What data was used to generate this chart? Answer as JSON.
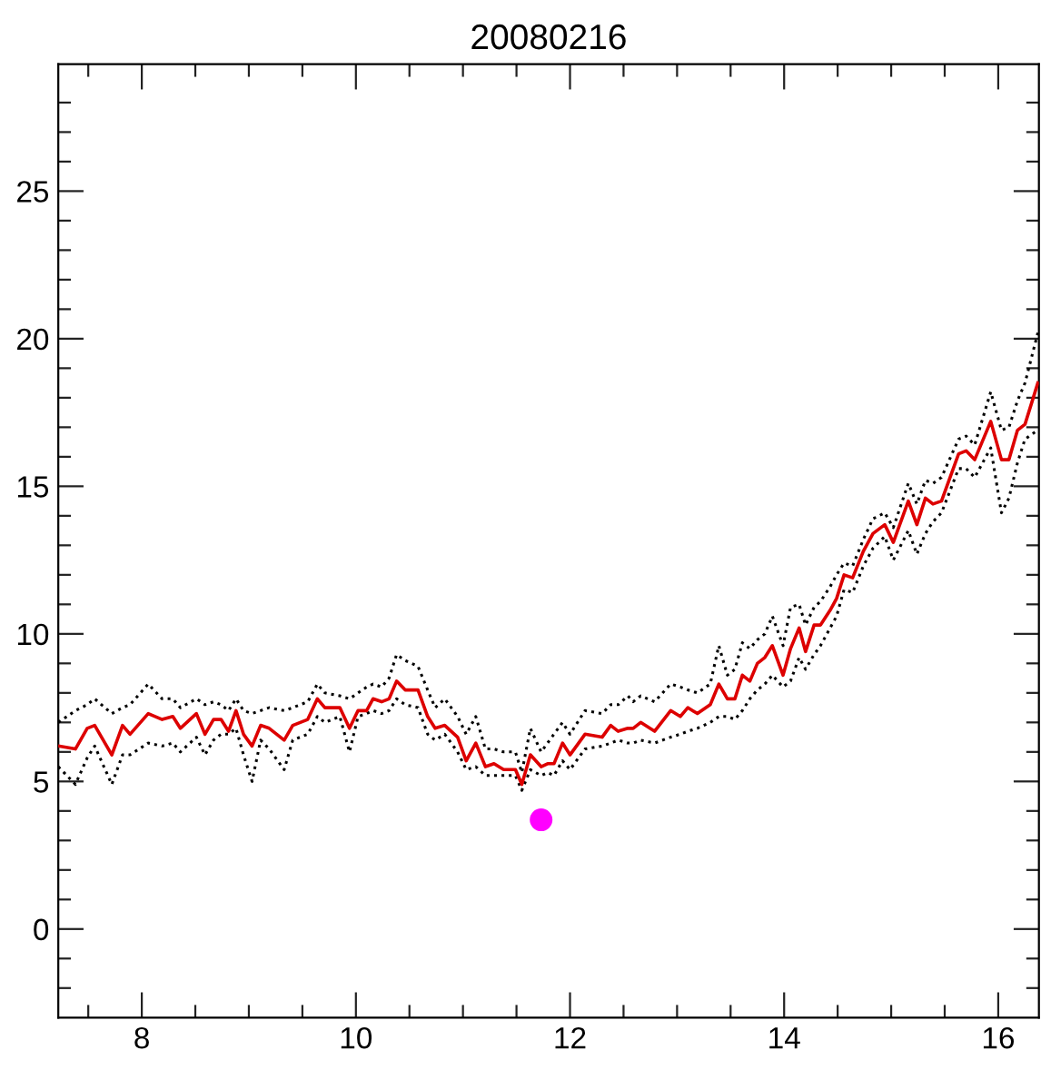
{
  "chart_data": {
    "type": "line",
    "title": "20080216",
    "x": [
      7.22,
      7.38,
      7.49,
      7.56,
      7.72,
      7.82,
      7.89,
      8.06,
      8.19,
      8.29,
      8.36,
      8.51,
      8.59,
      8.67,
      8.74,
      8.81,
      8.88,
      8.95,
      9.03,
      9.11,
      9.19,
      9.33,
      9.41,
      9.55,
      9.64,
      9.71,
      9.85,
      9.94,
      10.02,
      10.1,
      10.16,
      10.24,
      10.31,
      10.38,
      10.46,
      10.58,
      10.67,
      10.74,
      10.83,
      10.95,
      11.03,
      11.12,
      11.21,
      11.29,
      11.38,
      11.49,
      11.55,
      11.63,
      11.73,
      11.79,
      11.85,
      11.93,
      12.0,
      12.14,
      12.3,
      12.38,
      12.45,
      12.54,
      12.59,
      12.66,
      12.79,
      12.94,
      13.03,
      13.1,
      13.19,
      13.31,
      13.39,
      13.47,
      13.54,
      13.61,
      13.68,
      13.75,
      13.82,
      13.89,
      13.99,
      14.06,
      14.14,
      14.2,
      14.28,
      14.34,
      14.43,
      14.49,
      14.56,
      14.64,
      14.74,
      14.83,
      14.94,
      15.02,
      15.16,
      15.24,
      15.32,
      15.39,
      15.47,
      15.63,
      15.7,
      15.78,
      15.93,
      16.03,
      16.1,
      16.18,
      16.25,
      16.37
    ],
    "series": [
      {
        "color": "#000000",
        "line_style": "dotted",
        "values": [
          7.0,
          7.4,
          7.6,
          7.8,
          7.3,
          7.5,
          7.6,
          8.3,
          7.8,
          7.8,
          7.5,
          7.8,
          7.6,
          7.7,
          7.6,
          7.4,
          7.8,
          7.4,
          7.3,
          7.4,
          7.5,
          7.4,
          7.5,
          7.7,
          8.3,
          8.0,
          7.9,
          7.8,
          8.0,
          8.2,
          8.3,
          8.2,
          8.5,
          9.3,
          9.1,
          8.9,
          8.1,
          7.5,
          7.8,
          7.2,
          6.6,
          7.2,
          6.1,
          6.1,
          6.0,
          6.0,
          5.3,
          6.8,
          6.0,
          6.3,
          6.6,
          7.0,
          6.6,
          7.4,
          7.3,
          7.6,
          7.6,
          7.9,
          7.7,
          7.9,
          7.7,
          8.3,
          8.2,
          8.1,
          8.0,
          8.3,
          9.6,
          8.6,
          8.8,
          9.7,
          9.5,
          9.8,
          10.0,
          10.6,
          9.6,
          10.9,
          11.0,
          10.3,
          10.9,
          11.1,
          11.6,
          12.0,
          12.4,
          12.3,
          13.2,
          13.9,
          14.1,
          13.6,
          15.1,
          14.4,
          15.2,
          15.1,
          15.3,
          16.6,
          16.7,
          16.4,
          18.2,
          16.9,
          17.0,
          17.9,
          18.5,
          20.2
        ]
      },
      {
        "color": "#000000",
        "line_style": "dotted",
        "values": [
          5.5,
          4.9,
          5.8,
          6.2,
          4.9,
          5.9,
          5.9,
          6.3,
          6.2,
          6.3,
          6.0,
          6.5,
          5.9,
          6.4,
          6.6,
          6.6,
          6.8,
          5.9,
          5.0,
          6.4,
          6.1,
          5.4,
          6.4,
          6.6,
          7.2,
          7.0,
          7.2,
          6.0,
          7.2,
          7.3,
          7.4,
          7.3,
          7.4,
          7.8,
          7.6,
          7.5,
          6.6,
          6.4,
          6.6,
          6.0,
          5.4,
          5.5,
          5.2,
          5.2,
          5.2,
          5.2,
          4.7,
          5.4,
          5.2,
          5.3,
          5.2,
          5.7,
          5.4,
          6.1,
          6.2,
          6.3,
          6.4,
          6.3,
          6.3,
          6.4,
          6.3,
          6.5,
          6.6,
          6.7,
          6.8,
          7.0,
          7.2,
          7.2,
          7.1,
          7.4,
          7.8,
          8.1,
          8.3,
          8.6,
          8.2,
          8.4,
          9.2,
          8.8,
          9.3,
          9.6,
          10.2,
          10.6,
          11.5,
          11.4,
          12.3,
          12.9,
          13.3,
          12.5,
          13.5,
          12.7,
          13.4,
          13.8,
          14.1,
          15.6,
          15.6,
          15.3,
          16.3,
          14.1,
          14.6,
          15.8,
          16.6,
          16.9
        ]
      },
      {
        "color": "#dd0000",
        "line_style": "solid",
        "values": [
          6.2,
          6.1,
          6.8,
          6.9,
          5.9,
          6.9,
          6.6,
          7.3,
          7.1,
          7.2,
          6.8,
          7.3,
          6.6,
          7.1,
          7.1,
          6.7,
          7.4,
          6.6,
          6.2,
          6.9,
          6.8,
          6.4,
          6.9,
          7.1,
          7.8,
          7.5,
          7.5,
          6.8,
          7.4,
          7.4,
          7.8,
          7.7,
          7.8,
          8.4,
          8.1,
          8.1,
          7.2,
          6.8,
          6.9,
          6.5,
          5.7,
          6.3,
          5.5,
          5.6,
          5.4,
          5.4,
          4.9,
          5.9,
          5.5,
          5.6,
          5.6,
          6.3,
          5.9,
          6.6,
          6.5,
          6.9,
          6.7,
          6.8,
          6.8,
          7.0,
          6.7,
          7.4,
          7.2,
          7.5,
          7.3,
          7.6,
          8.3,
          7.8,
          7.8,
          8.6,
          8.4,
          9.0,
          9.2,
          9.6,
          8.6,
          9.5,
          10.2,
          9.4,
          10.3,
          10.3,
          10.8,
          11.2,
          12.0,
          11.9,
          12.8,
          13.4,
          13.7,
          13.1,
          14.5,
          13.7,
          14.6,
          14.4,
          14.5,
          16.1,
          16.2,
          15.9,
          17.2,
          15.9,
          15.9,
          16.9,
          17.1,
          18.5
        ]
      },
      {
        "type": "scatter",
        "color": "#ff00ff",
        "marker": "circle",
        "x": [
          11.73
        ],
        "values": [
          3.7
        ]
      }
    ],
    "xlim": [
      7.22,
      16.38
    ],
    "ylim": [
      -3,
      29.3
    ],
    "xticks": [
      {
        "value": 7.5,
        "label": null
      },
      8,
      {
        "value": 8.5,
        "label": null
      },
      {
        "value": 9,
        "label": null
      },
      {
        "value": 9.5,
        "label": null
      },
      10,
      {
        "value": 10.5,
        "label": null
      },
      {
        "value": 11,
        "label": null
      },
      {
        "value": 11.5,
        "label": null
      },
      12,
      {
        "value": 12.5,
        "label": null
      },
      {
        "value": 13,
        "label": null
      },
      {
        "value": 13.5,
        "label": null
      },
      14,
      {
        "value": 14.5,
        "label": null
      },
      {
        "value": 15,
        "label": null
      },
      {
        "value": 15.5,
        "label": null
      },
      16
    ],
    "yticks": [
      {
        "value": -2,
        "label": null
      },
      {
        "value": -1,
        "label": null
      },
      0,
      {
        "value": 1,
        "label": null
      },
      {
        "value": 2,
        "label": null
      },
      {
        "value": 3,
        "label": null
      },
      {
        "value": 4,
        "label": null
      },
      5,
      {
        "value": 6,
        "label": null
      },
      {
        "value": 7,
        "label": null
      },
      {
        "value": 8,
        "label": null
      },
      {
        "value": 9,
        "label": null
      },
      10,
      {
        "value": 11,
        "label": null
      },
      {
        "value": 12,
        "label": null
      },
      {
        "value": 13,
        "label": null
      },
      {
        "value": 14,
        "label": null
      },
      15,
      {
        "value": 16,
        "label": null
      },
      {
        "value": 17,
        "label": null
      },
      {
        "value": 18,
        "label": null
      },
      {
        "value": 19,
        "label": null
      },
      20,
      {
        "value": 21,
        "label": null
      },
      {
        "value": 22,
        "label": null
      },
      {
        "value": 23,
        "label": null
      },
      {
        "value": 24,
        "label": null
      },
      25,
      {
        "value": 26,
        "label": null
      },
      {
        "value": 27,
        "label": null
      },
      {
        "value": 28,
        "label": null
      }
    ]
  }
}
